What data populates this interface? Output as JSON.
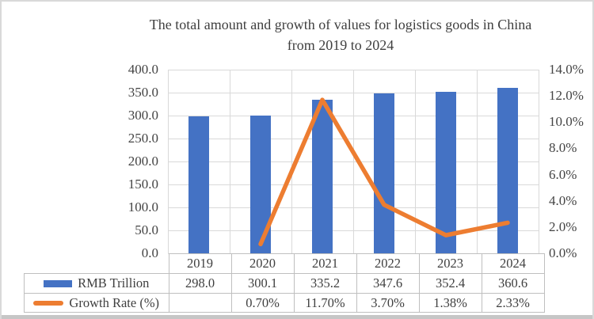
{
  "title": {
    "line1": "The total amount and growth of values for logistics goods in China",
    "line2": "from 2019 to 2024"
  },
  "chart_data": {
    "type": "combo-bar-line",
    "categories": [
      "2019",
      "2020",
      "2021",
      "2022",
      "2023",
      "2024"
    ],
    "series": [
      {
        "name": "RMB Trillion",
        "type": "bar",
        "axis": "left",
        "color": "#4472C4",
        "values": [
          298.0,
          300.1,
          335.2,
          347.6,
          352.4,
          360.6
        ],
        "labels": [
          "298.0",
          "300.1",
          "335.2",
          "347.6",
          "352.4",
          "360.6"
        ]
      },
      {
        "name": "Growth Rate (%)",
        "type": "line",
        "axis": "right",
        "color": "#ED7D31",
        "values": [
          null,
          0.7,
          11.7,
          3.7,
          1.38,
          2.33
        ],
        "labels": [
          "",
          "0.70%",
          "11.70%",
          "3.70%",
          "1.38%",
          "2.33%"
        ]
      }
    ],
    "left_axis": {
      "min": 0,
      "max": 400,
      "ticks": [
        "400.0",
        "350.0",
        "300.0",
        "250.0",
        "200.0",
        "150.0",
        "100.0",
        "50.0",
        "0.0"
      ]
    },
    "right_axis": {
      "min": 0,
      "max": 14,
      "ticks": [
        "14.0%",
        "12.0%",
        "10.0%",
        "8.0%",
        "6.0%",
        "4.0%",
        "2.0%",
        "0.0%"
      ]
    },
    "grid": true,
    "legend_position": "data-table-left"
  },
  "colors": {
    "bar": "#4472C4",
    "line": "#ED7D31",
    "gridline": "#D9D9D9",
    "table_border": "#BFBFBF",
    "text": "#404040"
  }
}
